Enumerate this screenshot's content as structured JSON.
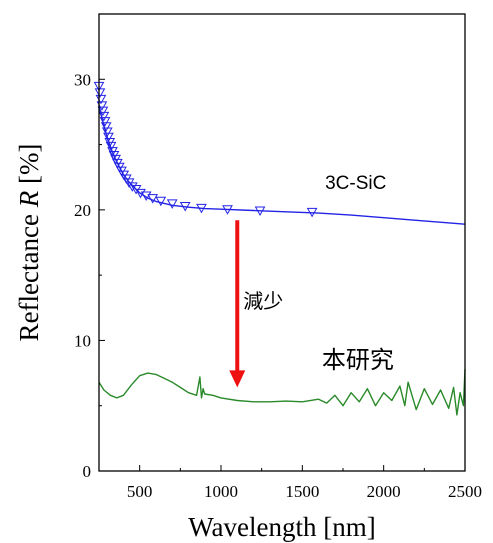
{
  "chart_data": {
    "type": "line",
    "title": "",
    "xlabel": "Wavelength [nm]",
    "ylabel": {
      "prefix": "Reflectance ",
      "symbol": "R",
      "suffix": " [%]"
    },
    "xlim": [
      250,
      2500
    ],
    "ylim": [
      0,
      35
    ],
    "x_ticks": [
      500,
      1000,
      1500,
      2000,
      2500
    ],
    "y_ticks": [
      0,
      10,
      20,
      30
    ],
    "grid": false,
    "legend": "none",
    "series": [
      {
        "name": "3C-SiC",
        "color": "#2323e6",
        "marker": "triangle-down-open",
        "x": [
          250,
          270,
          290,
          310,
          330,
          350,
          375,
          400,
          430,
          460,
          500,
          550,
          600,
          700,
          800,
          900,
          1000,
          1200,
          1400,
          1600,
          1800,
          2000,
          2200,
          2500
        ],
        "y": [
          28.0,
          26.9,
          26.0,
          25.2,
          24.5,
          23.9,
          23.3,
          22.7,
          22.2,
          21.8,
          21.3,
          20.9,
          20.65,
          20.35,
          20.2,
          20.1,
          20.05,
          19.95,
          19.85,
          19.75,
          19.6,
          19.4,
          19.2,
          18.9
        ],
        "marker_x": [
          250,
          256,
          262,
          268,
          274,
          280,
          287,
          294,
          301,
          308,
          316,
          324,
          333,
          342,
          352,
          363,
          375,
          388,
          402,
          418,
          435,
          455,
          478,
          505,
          540,
          580,
          630,
          700,
          780,
          880,
          1040,
          1240,
          1560
        ],
        "marker_y": [
          29.5,
          29.0,
          28.5,
          28.0,
          27.6,
          27.2,
          26.8,
          26.4,
          26.0,
          25.6,
          25.2,
          24.9,
          24.5,
          24.2,
          23.9,
          23.6,
          23.3,
          23.0,
          22.7,
          22.4,
          22.1,
          21.8,
          21.6,
          21.3,
          21.1,
          20.9,
          20.7,
          20.5,
          20.3,
          20.15,
          20.05,
          19.95,
          19.85
        ]
      },
      {
        "name": "本研究",
        "color": "#2a8a2a",
        "x": [
          250,
          280,
          320,
          360,
          400,
          450,
          500,
          550,
          600,
          650,
          700,
          750,
          800,
          850,
          870,
          880,
          890,
          900,
          950,
          1000,
          1100,
          1200,
          1300,
          1400,
          1500,
          1600,
          1650,
          1700,
          1750,
          1800,
          1850,
          1900,
          1950,
          2000,
          2050,
          2100,
          2130,
          2150,
          2200,
          2250,
          2300,
          2350,
          2400,
          2430,
          2450,
          2470,
          2490,
          2500
        ],
        "y": [
          6.8,
          6.2,
          5.8,
          5.6,
          5.8,
          6.6,
          7.3,
          7.5,
          7.4,
          7.1,
          6.8,
          6.4,
          6.0,
          5.8,
          7.2,
          5.6,
          6.3,
          5.9,
          5.8,
          5.6,
          5.4,
          5.3,
          5.3,
          5.35,
          5.3,
          5.5,
          5.2,
          5.8,
          5.0,
          6.0,
          5.3,
          6.3,
          5.0,
          6.0,
          5.4,
          6.5,
          5.0,
          6.8,
          4.7,
          6.3,
          5.1,
          6.2,
          4.8,
          6.4,
          4.3,
          6.0,
          5.0,
          7.8
        ]
      }
    ],
    "annotations": [
      {
        "type": "text",
        "text": "3C-SiC",
        "x": 1640,
        "y": 21.6
      },
      {
        "type": "text",
        "text": "本研究",
        "x": 1620,
        "y": 7.9
      },
      {
        "type": "arrow",
        "text": "減少",
        "color": "#ee1111",
        "from": [
          1100,
          19.2
        ],
        "to": [
          1100,
          6.4
        ]
      }
    ]
  }
}
